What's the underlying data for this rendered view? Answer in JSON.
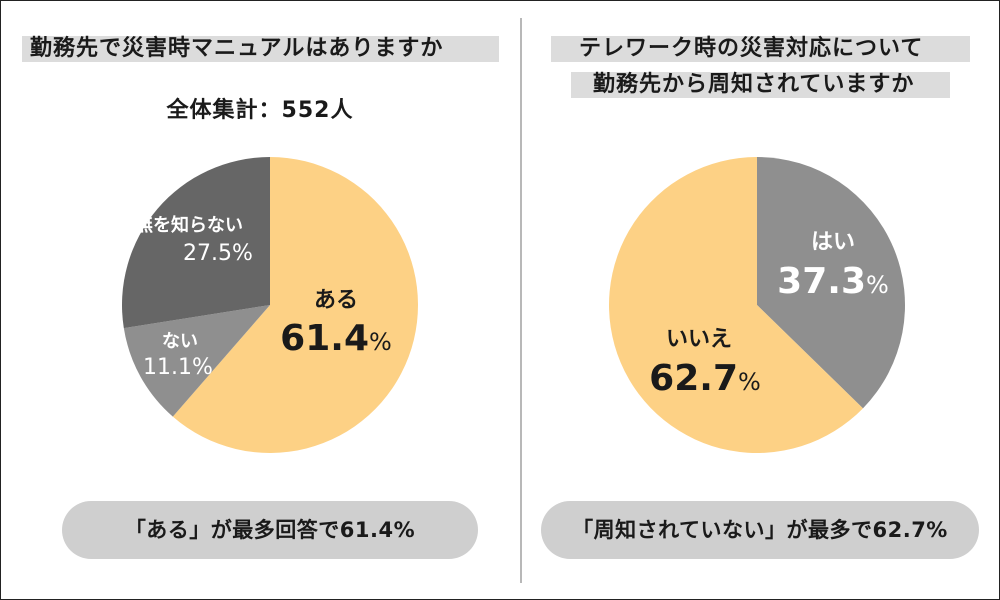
{
  "left_panel": {
    "title": "勤務先で災害時マニュアルはありますか",
    "subtitle": "全体集計：552人",
    "summary": "「ある」が最多回答で61.4%"
  },
  "right_panel": {
    "title_line1": "テレワーク時の災害対応について",
    "title_line2": "勤務先から周知されていますか",
    "summary": "「周知されていない」が最多で62.7%"
  },
  "chart_data": [
    {
      "type": "pie",
      "title": "勤務先で災害時マニュアルはありますか",
      "total_label": "全体集計：552人",
      "slices": [
        {
          "label": "ある",
          "value": 61.4,
          "value_text": "61.4",
          "color": "#fdd185"
        },
        {
          "label": "ない",
          "value": 11.1,
          "value_text": "11.1%",
          "color": "#8f8f8f"
        },
        {
          "label": "有無を知らない",
          "value": 27.5,
          "value_text": "27.5%",
          "color": "#666666"
        }
      ],
      "start": "top, clockwise"
    },
    {
      "type": "pie",
      "title": "テレワーク時の災害対応について勤務先から周知されていますか",
      "slices": [
        {
          "label": "はい",
          "value": 37.3,
          "value_text": "37.3",
          "color": "#8f8f8f"
        },
        {
          "label": "いいえ",
          "value": 62.7,
          "value_text": "62.7",
          "color": "#fdd185"
        }
      ],
      "start": "top, clockwise"
    }
  ],
  "percent_sign": "%",
  "colors": {
    "yellow": "#fdd185",
    "gray": "#8f8f8f",
    "dark_gray": "#666666",
    "title_bg": "#dcdcdc",
    "pill_bg": "#cfcfcf",
    "divider": "#b8b8b8"
  }
}
